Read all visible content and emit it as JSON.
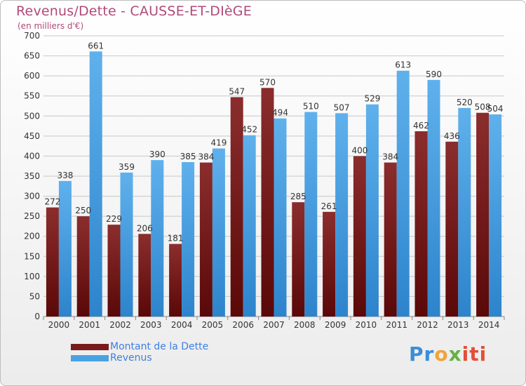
{
  "header": {
    "title": "Revenus/Dette - CAUSSE-ET-DIèGE",
    "subtitle": "(en milliers d'€)"
  },
  "legend": {
    "items": [
      {
        "label": "Montant de la Dette",
        "color": "#7a1a1a"
      },
      {
        "label": "Revenus",
        "color": "#4aa2e3"
      }
    ]
  },
  "logo": {
    "text": "Proxiti",
    "parts": [
      "Pr",
      "o",
      "x",
      "iti"
    ]
  },
  "colors": {
    "dette": "#7a1a1a",
    "revenus": "#4aa2e3",
    "grid": "#c8c8c8",
    "axis_text": "#333333"
  },
  "chart_data": {
    "type": "bar",
    "title": "Revenus/Dette - CAUSSE-ET-DIèGE",
    "subtitle": "(en milliers d'€)",
    "categories": [
      "2000",
      "2001",
      "2002",
      "2003",
      "2004",
      "2005",
      "2006",
      "2007",
      "2008",
      "2009",
      "2010",
      "2011",
      "2012",
      "2013",
      "2014"
    ],
    "series": [
      {
        "name": "Montant de la Dette",
        "values": [
          272,
          250,
          229,
          206,
          181,
          384,
          547,
          570,
          285,
          261,
          400,
          384,
          462,
          436,
          508
        ]
      },
      {
        "name": "Revenus",
        "values": [
          338,
          661,
          359,
          390,
          385,
          419,
          452,
          494,
          510,
          507,
          529,
          613,
          590,
          520,
          504
        ]
      }
    ],
    "ylim": [
      0,
      700
    ],
    "yticks": [
      0,
      50,
      100,
      150,
      200,
      250,
      300,
      350,
      400,
      450,
      500,
      550,
      600,
      650,
      700
    ],
    "grid": true,
    "legend_position": "bottom-left"
  }
}
